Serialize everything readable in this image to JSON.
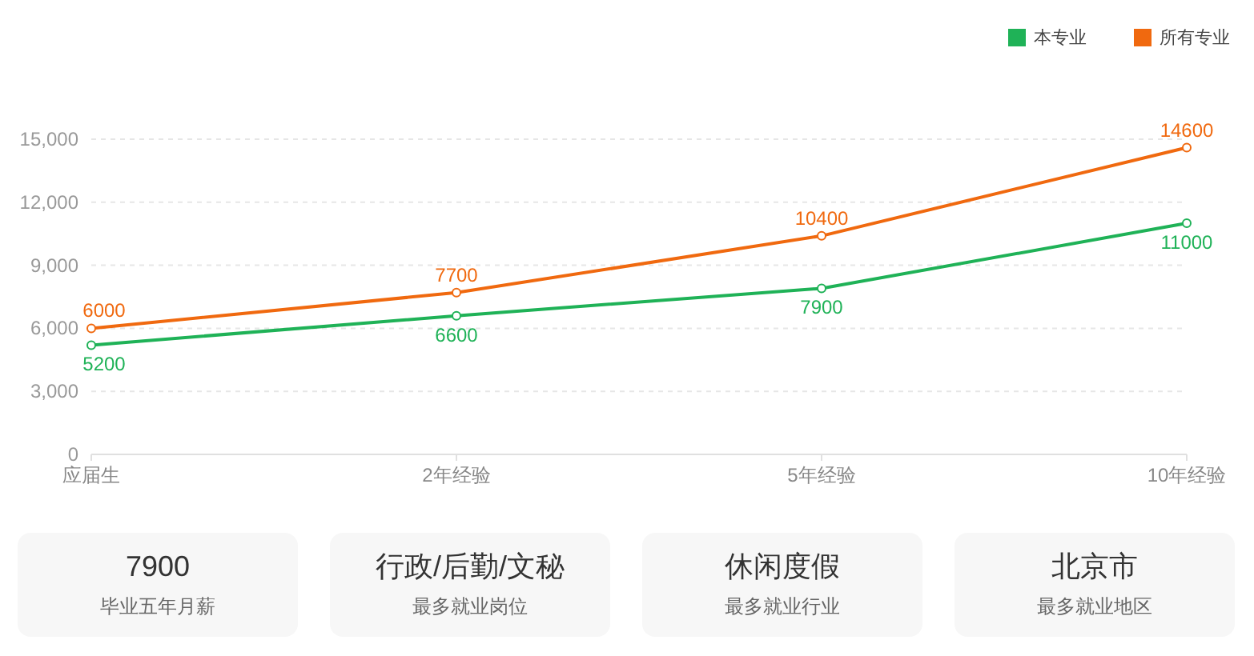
{
  "chart_data": [
    {
      "type": "line",
      "categories": [
        "应届生",
        "2年经验",
        "5年经验",
        "10年经验"
      ],
      "series": [
        {
          "name": "本专业",
          "color": "#1fb257",
          "values": [
            5200,
            6600,
            7900,
            11000
          ]
        },
        {
          "name": "所有专业",
          "color": "#f0690f",
          "values": [
            6000,
            7700,
            10400,
            14600
          ]
        }
      ],
      "ylim": [
        0,
        15000
      ],
      "yticks": [
        0,
        {
          "value": 3000,
          "label": "3,000"
        },
        {
          "value": 6000,
          "label": "6,000"
        },
        {
          "value": 9000,
          "label": "9,000"
        },
        {
          "value": 12000,
          "label": "12,000"
        },
        {
          "value": 15000,
          "label": "15,000"
        }
      ],
      "grid": "y",
      "legend": "top right",
      "marker": "circle",
      "data_labels": true
    },
    {
      "type": "other",
      "annotations": [
        "7900",
        "毕业五年月薪",
        "行政/后勤/文秘",
        "最多就业岗位",
        "休闲度假",
        "最多就业行业",
        "北京市",
        "最多就业地区"
      ]
    }
  ]
}
